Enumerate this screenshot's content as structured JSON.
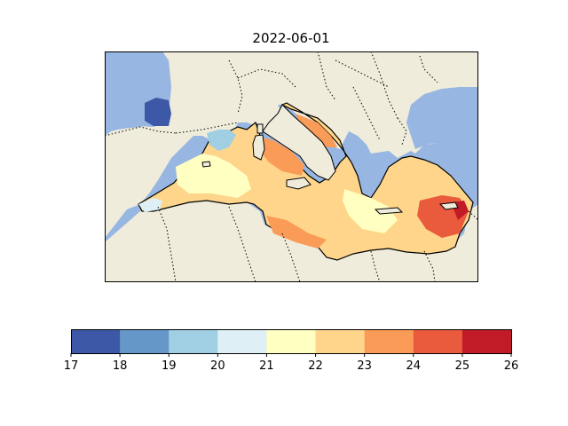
{
  "title": "2022-06-01",
  "colorbar": {
    "ticks": [
      "17",
      "18",
      "19",
      "20",
      "21",
      "22",
      "23",
      "24",
      "25",
      "26"
    ],
    "colors": [
      "#3d58a6",
      "#6598c9",
      "#a0cfe3",
      "#def0f6",
      "#ffffc1",
      "#fed58a",
      "#fa9c58",
      "#ea5a3c",
      "#c01b26"
    ]
  },
  "map": {
    "ocean_color": "#97b6e1",
    "land_color": "#efecdc",
    "border_style": "dotted",
    "coastline_color": "#000000"
  }
}
